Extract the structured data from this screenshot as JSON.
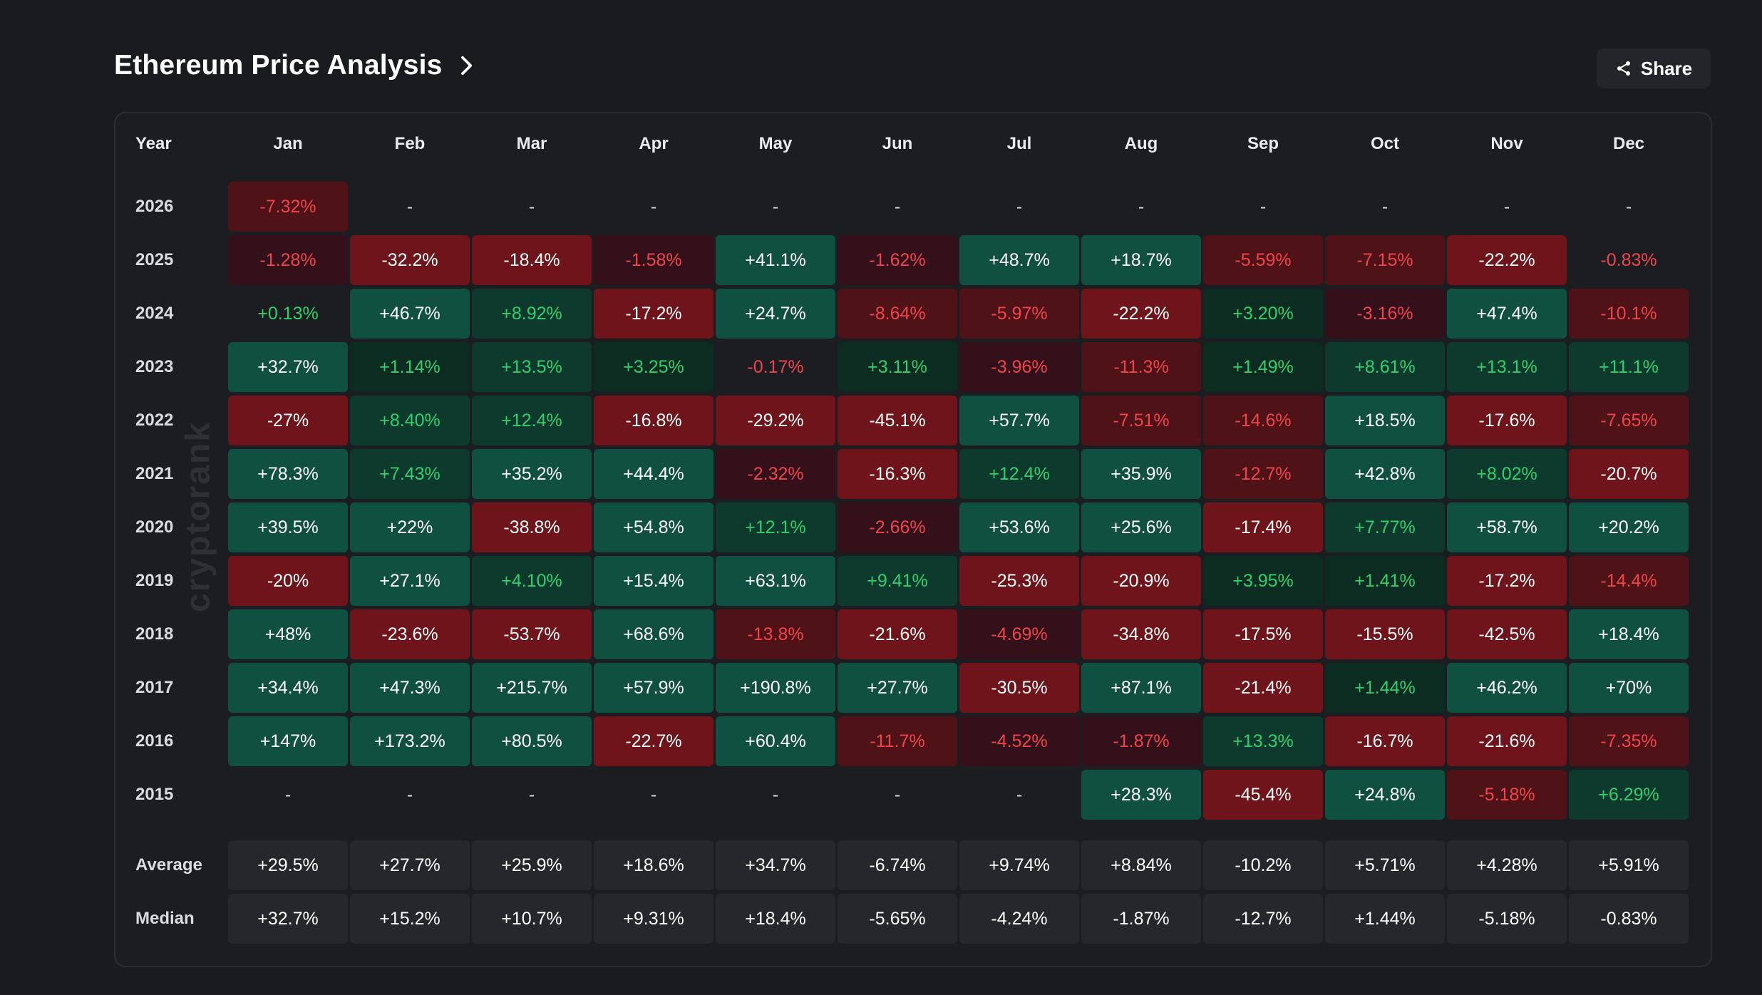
{
  "header": {
    "title": "Ethereum Price Analysis",
    "share_label": "Share"
  },
  "watermark": "cryptorank",
  "chart_data": {
    "type": "table",
    "title": "Ethereum Price Analysis",
    "columns": [
      "Year",
      "Jan",
      "Feb",
      "Mar",
      "Apr",
      "May",
      "Jun",
      "Jul",
      "Aug",
      "Sep",
      "Oct",
      "Nov",
      "Dec"
    ],
    "rows": [
      {
        "year": "2026",
        "values": [
          -7.32,
          null,
          null,
          null,
          null,
          null,
          null,
          null,
          null,
          null,
          null,
          null
        ],
        "labels": [
          "-7.32%",
          "-",
          "-",
          "-",
          "-",
          "-",
          "-",
          "-",
          "-",
          "-",
          "-",
          "-"
        ]
      },
      {
        "year": "2025",
        "values": [
          -1.28,
          -32.2,
          -18.4,
          -1.58,
          41.1,
          -1.62,
          48.7,
          18.7,
          -5.59,
          -7.15,
          -22.2,
          -0.83
        ],
        "labels": [
          "-1.28%",
          "-32.2%",
          "-18.4%",
          "-1.58%",
          "+41.1%",
          "-1.62%",
          "+48.7%",
          "+18.7%",
          "-5.59%",
          "-7.15%",
          "-22.2%",
          "-0.83%"
        ]
      },
      {
        "year": "2024",
        "values": [
          0.13,
          46.7,
          8.92,
          -17.2,
          24.7,
          -8.64,
          -5.97,
          -22.2,
          3.2,
          -3.16,
          47.4,
          -10.1
        ],
        "labels": [
          "+0.13%",
          "+46.7%",
          "+8.92%",
          "-17.2%",
          "+24.7%",
          "-8.64%",
          "-5.97%",
          "-22.2%",
          "+3.20%",
          "-3.16%",
          "+47.4%",
          "-10.1%"
        ]
      },
      {
        "year": "2023",
        "values": [
          32.7,
          1.14,
          13.5,
          3.25,
          -0.17,
          3.11,
          -3.96,
          -11.3,
          1.49,
          8.61,
          13.1,
          11.1
        ],
        "labels": [
          "+32.7%",
          "+1.14%",
          "+13.5%",
          "+3.25%",
          "-0.17%",
          "+3.11%",
          "-3.96%",
          "-11.3%",
          "+1.49%",
          "+8.61%",
          "+13.1%",
          "+11.1%"
        ]
      },
      {
        "year": "2022",
        "values": [
          -27,
          8.4,
          12.4,
          -16.8,
          -29.2,
          -45.1,
          57.7,
          -7.51,
          -14.6,
          18.5,
          -17.6,
          -7.65
        ],
        "labels": [
          "-27%",
          "+8.40%",
          "+12.4%",
          "-16.8%",
          "-29.2%",
          "-45.1%",
          "+57.7%",
          "-7.51%",
          "-14.6%",
          "+18.5%",
          "-17.6%",
          "-7.65%"
        ]
      },
      {
        "year": "2021",
        "values": [
          78.3,
          7.43,
          35.2,
          44.4,
          -2.32,
          -16.3,
          12.4,
          35.9,
          -12.7,
          42.8,
          8.02,
          -20.7
        ],
        "labels": [
          "+78.3%",
          "+7.43%",
          "+35.2%",
          "+44.4%",
          "-2.32%",
          "-16.3%",
          "+12.4%",
          "+35.9%",
          "-12.7%",
          "+42.8%",
          "+8.02%",
          "-20.7%"
        ]
      },
      {
        "year": "2020",
        "values": [
          39.5,
          22,
          -38.8,
          54.8,
          12.1,
          -2.66,
          53.6,
          25.6,
          -17.4,
          7.77,
          58.7,
          20.2
        ],
        "labels": [
          "+39.5%",
          "+22%",
          "-38.8%",
          "+54.8%",
          "+12.1%",
          "-2.66%",
          "+53.6%",
          "+25.6%",
          "-17.4%",
          "+7.77%",
          "+58.7%",
          "+20.2%"
        ]
      },
      {
        "year": "2019",
        "values": [
          -20,
          27.1,
          4.1,
          15.4,
          63.1,
          9.41,
          -25.3,
          -20.9,
          3.95,
          1.41,
          -17.2,
          -14.4
        ],
        "labels": [
          "-20%",
          "+27.1%",
          "+4.10%",
          "+15.4%",
          "+63.1%",
          "+9.41%",
          "-25.3%",
          "-20.9%",
          "+3.95%",
          "+1.41%",
          "-17.2%",
          "-14.4%"
        ]
      },
      {
        "year": "2018",
        "values": [
          48,
          -23.6,
          -53.7,
          68.6,
          -13.8,
          -21.6,
          -4.69,
          -34.8,
          -17.5,
          -15.5,
          -42.5,
          18.4
        ],
        "labels": [
          "+48%",
          "-23.6%",
          "-53.7%",
          "+68.6%",
          "-13.8%",
          "-21.6%",
          "-4.69%",
          "-34.8%",
          "-17.5%",
          "-15.5%",
          "-42.5%",
          "+18.4%"
        ]
      },
      {
        "year": "2017",
        "values": [
          34.4,
          47.3,
          215.7,
          57.9,
          190.8,
          27.7,
          -30.5,
          87.1,
          -21.4,
          1.44,
          46.2,
          70
        ],
        "labels": [
          "+34.4%",
          "+47.3%",
          "+215.7%",
          "+57.9%",
          "+190.8%",
          "+27.7%",
          "-30.5%",
          "+87.1%",
          "-21.4%",
          "+1.44%",
          "+46.2%",
          "+70%"
        ]
      },
      {
        "year": "2016",
        "values": [
          147,
          173.2,
          80.5,
          -22.7,
          60.4,
          -11.7,
          -4.52,
          -1.87,
          13.3,
          -16.7,
          -21.6,
          -7.35
        ],
        "labels": [
          "+147%",
          "+173.2%",
          "+80.5%",
          "-22.7%",
          "+60.4%",
          "-11.7%",
          "-4.52%",
          "-1.87%",
          "+13.3%",
          "-16.7%",
          "-21.6%",
          "-7.35%"
        ]
      },
      {
        "year": "2015",
        "values": [
          null,
          null,
          null,
          null,
          null,
          null,
          null,
          28.3,
          -45.4,
          24.8,
          -5.18,
          6.29
        ],
        "labels": [
          "-",
          "-",
          "-",
          "-",
          "-",
          "-",
          "-",
          "+28.3%",
          "-45.4%",
          "+24.8%",
          "-5.18%",
          "+6.29%"
        ]
      }
    ],
    "summary": [
      {
        "label": "Average",
        "labels": [
          "+29.5%",
          "+27.7%",
          "+25.9%",
          "+18.6%",
          "+34.7%",
          "-6.74%",
          "+9.74%",
          "+8.84%",
          "-10.2%",
          "+5.71%",
          "+4.28%",
          "+5.91%"
        ]
      },
      {
        "label": "Median",
        "labels": [
          "+32.7%",
          "+15.2%",
          "+10.7%",
          "+9.31%",
          "+18.4%",
          "-5.65%",
          "-4.24%",
          "-1.87%",
          "-12.7%",
          "+1.44%",
          "-5.18%",
          "-0.83%"
        ]
      }
    ]
  },
  "colors": {
    "strong_green_bg": "#0f5040",
    "mid_green_bg": "#0e3a2d",
    "weak_green_bg": "#0c2c22",
    "strong_red_bg": "#6e141a",
    "mid_red_bg": "#4e1217",
    "weak_red_bg": "#33101a",
    "green_text": "#2fcf6c",
    "red_text": "#f0444d",
    "white_text": "#ffffff"
  }
}
